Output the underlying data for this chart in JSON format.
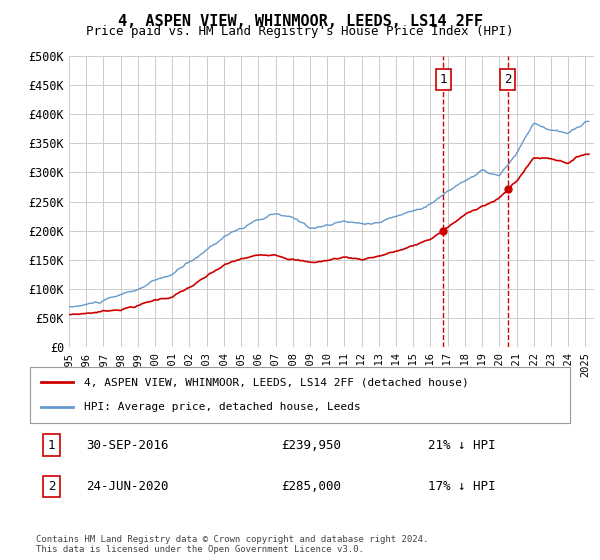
{
  "title": "4, ASPEN VIEW, WHINMOOR, LEEDS, LS14 2FF",
  "subtitle": "Price paid vs. HM Land Registry's House Price Index (HPI)",
  "legend_label_red": "4, ASPEN VIEW, WHINMOOR, LEEDS, LS14 2FF (detached house)",
  "legend_label_blue": "HPI: Average price, detached house, Leeds",
  "footnote": "Contains HM Land Registry data © Crown copyright and database right 2024.\nThis data is licensed under the Open Government Licence v3.0.",
  "transactions": [
    {
      "num": 1,
      "date": "30-SEP-2016",
      "price": "£239,950",
      "pct": "21% ↓ HPI",
      "year": 2016.75
    },
    {
      "num": 2,
      "date": "24-JUN-2020",
      "price": "£285,000",
      "pct": "17% ↓ HPI",
      "year": 2020.5
    }
  ],
  "ylim": [
    0,
    500000
  ],
  "yticks": [
    0,
    50000,
    100000,
    150000,
    200000,
    250000,
    300000,
    350000,
    400000,
    450000,
    500000
  ],
  "ytick_labels": [
    "£0",
    "£50K",
    "£100K",
    "£150K",
    "£200K",
    "£250K",
    "£300K",
    "£350K",
    "£400K",
    "£450K",
    "£500K"
  ],
  "xlim_start": 1995.0,
  "xlim_end": 2025.5,
  "hpi_color": "#6699cc",
  "price_color": "#cc0000",
  "vline_color": "#cc0000",
  "grid_color": "#cccccc",
  "background_color": "#ffffff",
  "hpi_years": [
    1995,
    1996,
    1997,
    1998,
    1999,
    2000,
    2001,
    2002,
    2003,
    2004,
    2005,
    2006,
    2007,
    2008,
    2009,
    2010,
    2011,
    2012,
    2013,
    2014,
    2015,
    2016,
    2017,
    2018,
    2019,
    2020,
    2021,
    2022,
    2023,
    2024,
    2025
  ],
  "hpi_values": [
    68000,
    72000,
    78000,
    85000,
    95000,
    108000,
    118000,
    138000,
    160000,
    185000,
    200000,
    210000,
    220000,
    210000,
    195000,
    200000,
    205000,
    200000,
    205000,
    215000,
    225000,
    240000,
    260000,
    280000,
    295000,
    285000,
    320000,
    370000,
    360000,
    350000,
    370000
  ],
  "price_years": [
    1995,
    1996,
    1997,
    1998,
    1999,
    2000,
    2001,
    2002,
    2003,
    2004,
    2005,
    2006,
    2007,
    2008,
    2009,
    2010,
    2011,
    2012,
    2013,
    2014,
    2015,
    2016,
    2017,
    2018,
    2019,
    2020,
    2021,
    2022,
    2023,
    2024,
    2025
  ],
  "price_values": [
    55000,
    58000,
    62000,
    67000,
    74000,
    83000,
    90000,
    105000,
    122000,
    140000,
    150000,
    155000,
    160000,
    155000,
    148000,
    152000,
    158000,
    155000,
    162000,
    170000,
    178000,
    190000,
    210000,
    230000,
    248000,
    260000,
    290000,
    330000,
    330000,
    325000,
    340000
  ]
}
